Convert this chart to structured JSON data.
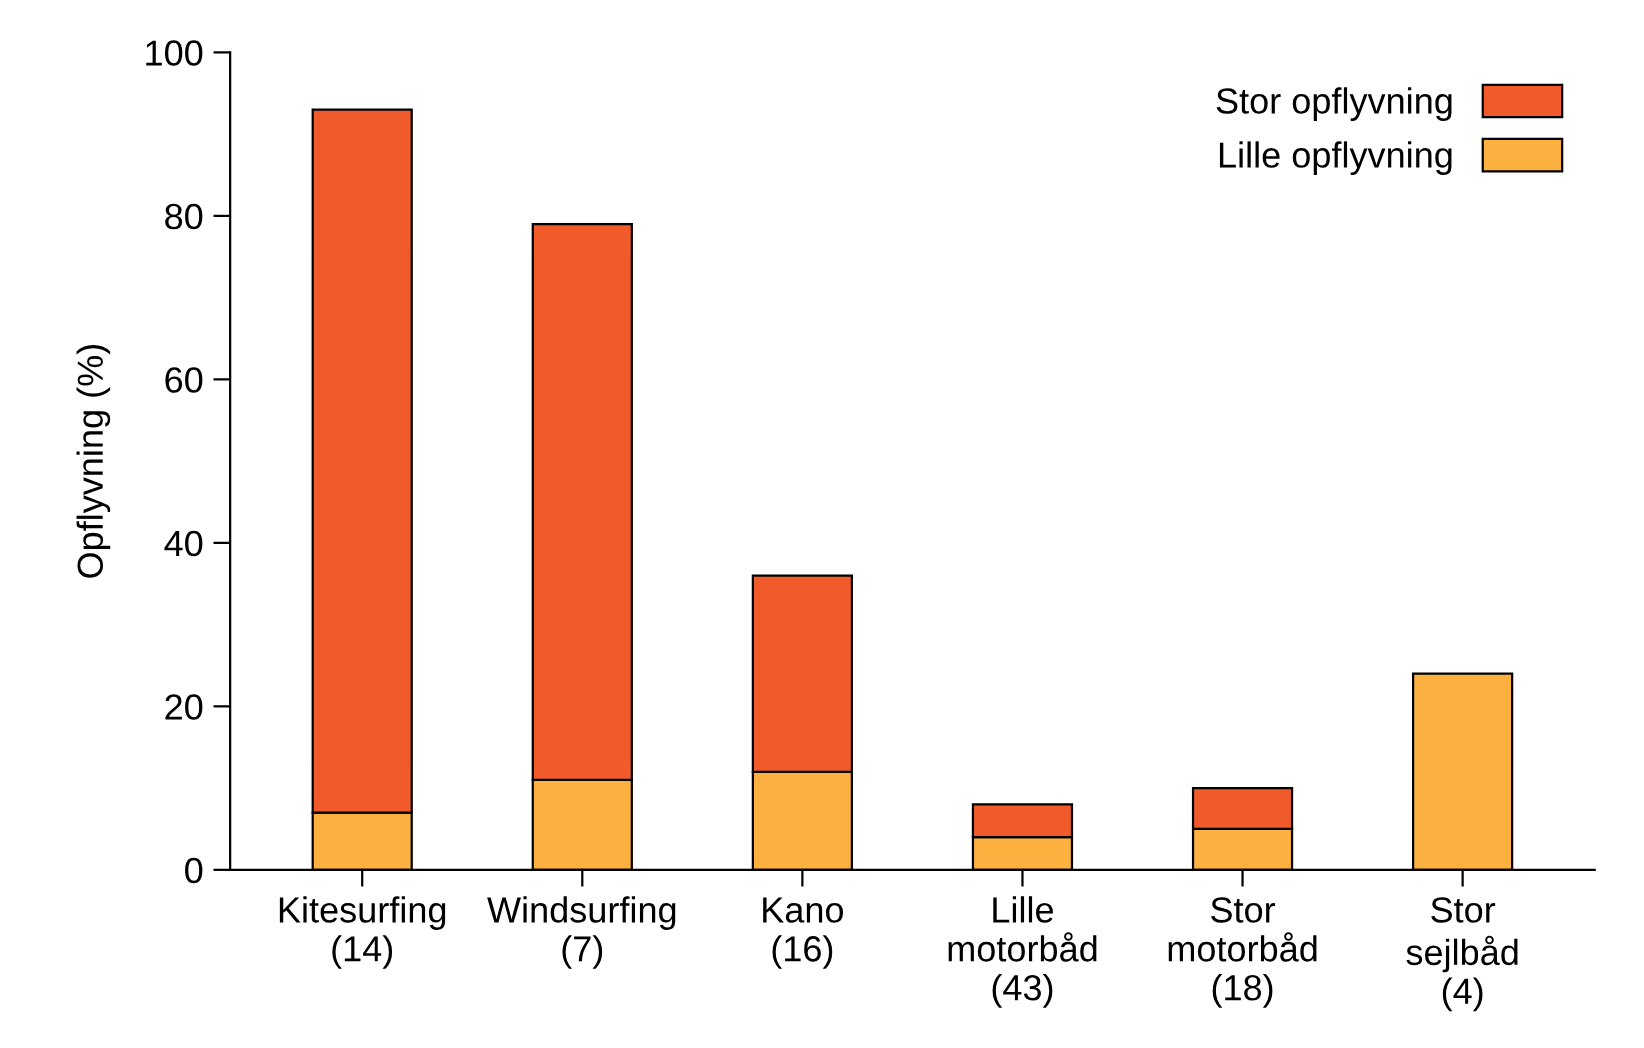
{
  "chart_data": {
    "type": "bar",
    "stacked": true,
    "ylabel": "Opflyvning (%)",
    "categories": [
      "Kitesurfing\n(14)",
      "Windsurfing\n(7)",
      "Kano\n(16)",
      "Lille\nmotorbåd\n(43)",
      "Stor\nmotorbåd\n(18)",
      "Stor\nsejlbåd\n(4)"
    ],
    "series": [
      {
        "name": "Lille opflyvning",
        "color": "#fbb040",
        "values": [
          7,
          11,
          12,
          4,
          5,
          24
        ]
      },
      {
        "name": "Stor opflyvning",
        "color": "#f15a2b",
        "values": [
          86,
          68,
          24,
          4,
          5,
          null
        ]
      }
    ],
    "ylim": [
      0,
      100
    ],
    "yticks": [
      0,
      20,
      40,
      60,
      80,
      100
    ],
    "grid": false,
    "legend": "top right"
  }
}
